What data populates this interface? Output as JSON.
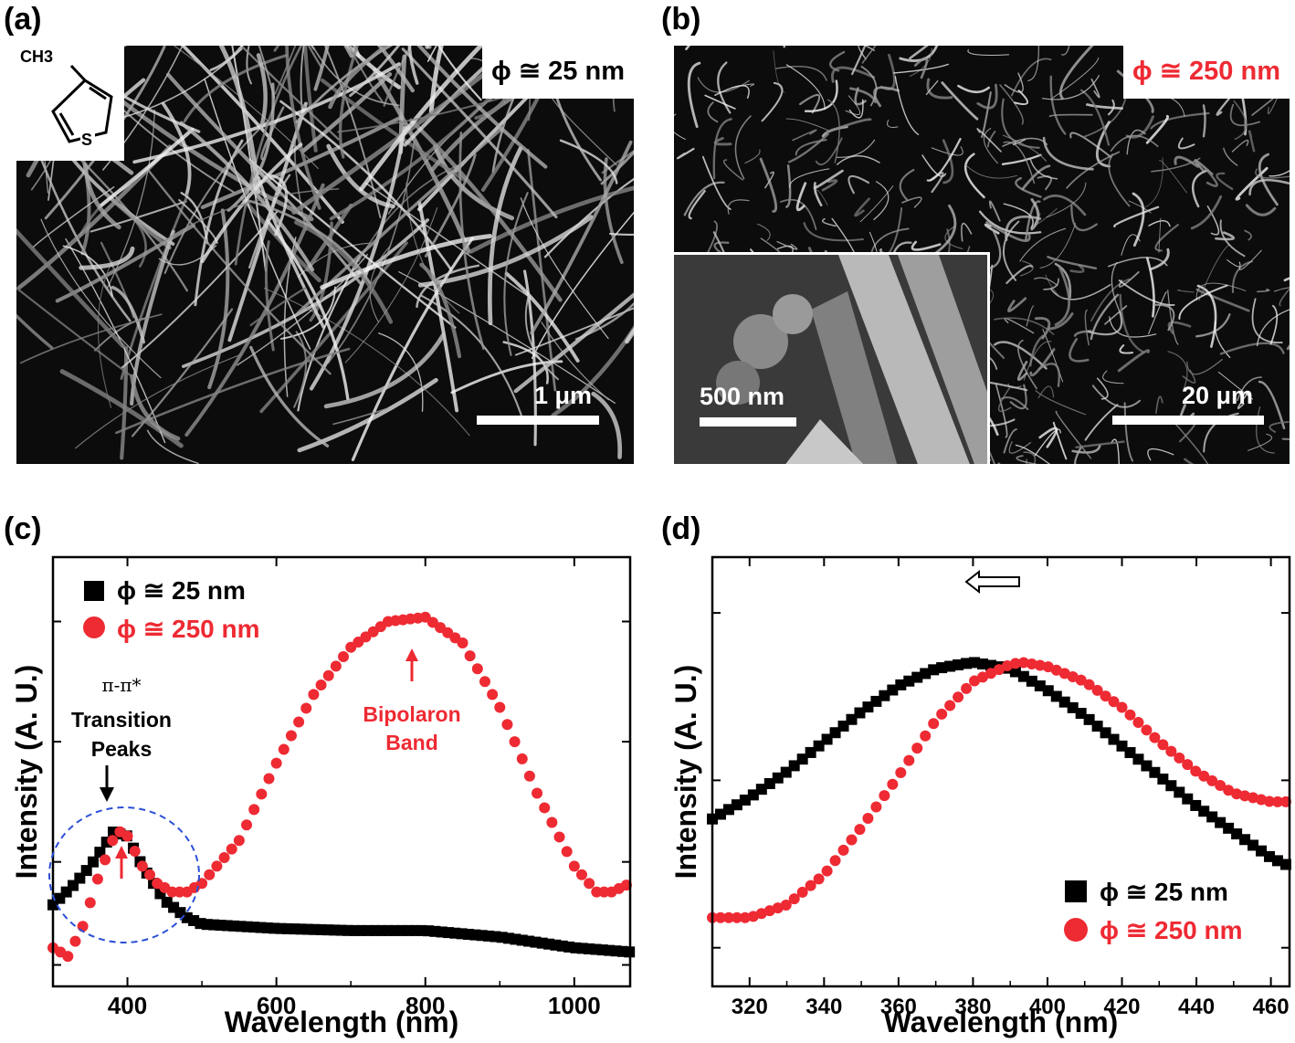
{
  "panels": {
    "a": {
      "label": "(a)",
      "diameter": "ϕ ≅ 25 nm",
      "scale_bar": "1 μm",
      "molecule_ch3": "CH3",
      "molecule_s": "S"
    },
    "b": {
      "label": "(b)",
      "diameter": "ϕ ≅ 250 nm",
      "scale_bar": "20 μm",
      "inset_scale_bar": "500 nm"
    },
    "c": {
      "label": "(c)"
    },
    "d": {
      "label": "(d)"
    }
  },
  "colors": {
    "black_series": "#000000",
    "red_series": "#ee2a33",
    "circle": "#2b4fd6"
  },
  "chart_data": [
    {
      "type": "scatter",
      "xlabel": "Wavelength (nm)",
      "ylabel": "Intensity (A. U.)",
      "xlim": [
        300,
        1075
      ],
      "ylim": [
        0,
        1
      ],
      "xticks": [
        400,
        600,
        800,
        1000
      ],
      "legend_position": "top-left",
      "annotations": {
        "transition_line1": "π-π*",
        "transition_line2": "Transition",
        "transition_line3": "Peaks",
        "bipolaron_line1": "Bipolaron",
        "bipolaron_line2": "Band"
      },
      "series": [
        {
          "name": "ϕ ≅ 25 nm",
          "color": "#000000",
          "marker": "square",
          "x": [
            300,
            330,
            350,
            370,
            380,
            400,
            420,
            450,
            480,
            500,
            550,
            600,
            700,
            800,
            900,
            1000,
            1075
          ],
          "y": [
            0.19,
            0.24,
            0.28,
            0.33,
            0.36,
            0.35,
            0.28,
            0.2,
            0.16,
            0.145,
            0.14,
            0.135,
            0.13,
            0.13,
            0.115,
            0.09,
            0.08
          ]
        },
        {
          "name": "ϕ ≅ 250 nm",
          "color": "#ee2a33",
          "marker": "circle",
          "x": [
            300,
            320,
            340,
            360,
            380,
            390,
            400,
            420,
            440,
            460,
            480,
            500,
            550,
            600,
            650,
            700,
            750,
            800,
            850,
            900,
            950,
            1000,
            1030,
            1050,
            1075
          ],
          "y": [
            0.09,
            0.07,
            0.14,
            0.25,
            0.34,
            0.36,
            0.35,
            0.28,
            0.24,
            0.22,
            0.22,
            0.24,
            0.34,
            0.52,
            0.68,
            0.79,
            0.85,
            0.86,
            0.8,
            0.65,
            0.45,
            0.28,
            0.22,
            0.22,
            0.24
          ]
        }
      ]
    },
    {
      "type": "scatter",
      "xlabel": "Wavelength (nm)",
      "ylabel": "Intensity (A. U.)",
      "xlim": [
        310,
        465
      ],
      "ylim": [
        0,
        1
      ],
      "xticks": [
        320,
        340,
        360,
        380,
        400,
        420,
        440,
        460
      ],
      "legend_position": "bottom-right",
      "series": [
        {
          "name": "ϕ ≅ 25 nm",
          "color": "#000000",
          "marker": "square",
          "x": [
            310,
            320,
            330,
            340,
            350,
            360,
            370,
            380,
            390,
            400,
            410,
            420,
            430,
            440,
            450,
            460,
            465
          ],
          "y": [
            0.39,
            0.44,
            0.5,
            0.57,
            0.64,
            0.7,
            0.74,
            0.755,
            0.74,
            0.69,
            0.63,
            0.56,
            0.49,
            0.42,
            0.36,
            0.3,
            0.28
          ]
        },
        {
          "name": "ϕ ≅ 250 nm",
          "color": "#ee2a33",
          "marker": "circle",
          "x": [
            310,
            320,
            330,
            340,
            350,
            360,
            370,
            380,
            390,
            393,
            400,
            410,
            420,
            430,
            440,
            450,
            460,
            465
          ],
          "y": [
            0.16,
            0.16,
            0.19,
            0.26,
            0.37,
            0.49,
            0.62,
            0.71,
            0.75,
            0.755,
            0.745,
            0.71,
            0.65,
            0.57,
            0.5,
            0.45,
            0.43,
            0.43
          ]
        }
      ]
    }
  ]
}
